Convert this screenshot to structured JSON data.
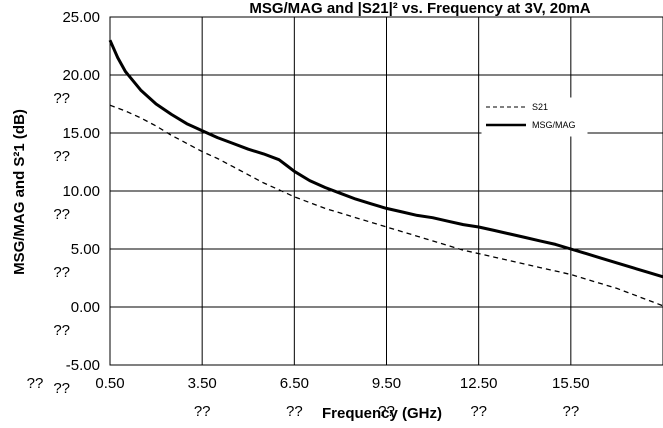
{
  "chart_data": {
    "type": "line",
    "title": "MSG/MAG and |S21|² vs. Frequency at 3V, 20mA",
    "xlabel": "Frequency (GHz)",
    "ylabel": "MSG/MAG and S²1 (dB)",
    "xlim": [
      0.5,
      18.5
    ],
    "ylim": [
      -5,
      25
    ],
    "x_ticks": [
      {
        "value": 0.5,
        "label": "0.50",
        "extra": "??"
      },
      {
        "value": 3.5,
        "label": "3.50",
        "extra": "??"
      },
      {
        "value": 6.5,
        "label": "6.50",
        "extra": "??"
      },
      {
        "value": 9.5,
        "label": "9.50",
        "extra": "??"
      },
      {
        "value": 12.5,
        "label": "12.50",
        "extra": "??"
      },
      {
        "value": 15.5,
        "label": "15.50",
        "extra": "??"
      }
    ],
    "y_ticks": [
      {
        "value": 25,
        "label": "25.00"
      },
      {
        "value": 20,
        "label": "20.00",
        "extra": "??"
      },
      {
        "value": 15,
        "label": "15.00",
        "extra": "??"
      },
      {
        "value": 10,
        "label": "10.00",
        "extra": "??"
      },
      {
        "value": 5,
        "label": "5.00",
        "extra": "??"
      },
      {
        "value": 0,
        "label": "0.00",
        "extra": "??"
      },
      {
        "value": -5,
        "label": "-5.00",
        "extra": "??"
      }
    ],
    "grid": true,
    "legend_position": "right",
    "series": [
      {
        "name": "S21",
        "style": "dashed",
        "color": "#000000",
        "x": [
          0.5,
          1.0,
          1.5,
          2.0,
          2.5,
          3.0,
          3.5,
          4.0,
          4.5,
          5.0,
          5.5,
          6.0,
          6.5,
          7.0,
          7.5,
          8.0,
          8.5,
          9.0,
          9.5,
          10.0,
          10.5,
          11.0,
          11.5,
          12.0,
          12.5,
          13.0,
          13.5,
          14.0,
          14.5,
          15.0,
          15.5,
          16.0,
          16.5,
          17.0,
          17.5,
          18.0,
          18.5
        ],
        "values": [
          17.4,
          16.9,
          16.3,
          15.6,
          14.8,
          14.1,
          13.4,
          12.8,
          12.1,
          11.4,
          10.7,
          10.1,
          9.5,
          9.0,
          8.5,
          8.1,
          7.7,
          7.3,
          6.9,
          6.5,
          6.1,
          5.7,
          5.3,
          4.9,
          4.6,
          4.3,
          4.0,
          3.7,
          3.4,
          3.1,
          2.8,
          2.4,
          2.0,
          1.6,
          1.1,
          0.6,
          0.1
        ]
      },
      {
        "name": "MSG/MAG",
        "style": "solid",
        "color": "#000000",
        "x": [
          0.5,
          0.75,
          1.0,
          1.5,
          2.0,
          2.5,
          3.0,
          3.5,
          4.0,
          4.5,
          5.0,
          5.5,
          6.0,
          6.25,
          6.5,
          7.0,
          7.5,
          8.0,
          8.5,
          9.0,
          9.5,
          10.0,
          10.5,
          11.0,
          11.5,
          12.0,
          12.5,
          13.0,
          13.5,
          14.0,
          14.5,
          15.0,
          15.5,
          16.0,
          16.5,
          17.0,
          17.5,
          18.0,
          18.5
        ],
        "values": [
          23.0,
          21.5,
          20.3,
          18.7,
          17.5,
          16.6,
          15.8,
          15.2,
          14.6,
          14.1,
          13.6,
          13.2,
          12.7,
          12.2,
          11.7,
          10.9,
          10.3,
          9.8,
          9.3,
          8.9,
          8.5,
          8.2,
          7.9,
          7.7,
          7.4,
          7.1,
          6.9,
          6.6,
          6.3,
          6.0,
          5.7,
          5.4,
          5.0,
          4.6,
          4.2,
          3.8,
          3.4,
          3.0,
          2.6
        ]
      }
    ]
  }
}
